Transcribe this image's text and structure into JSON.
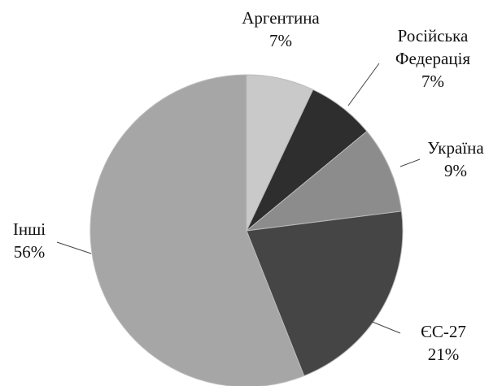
{
  "chart_data": {
    "type": "pie",
    "categories": [
      "Аргентина",
      "Російська Федерація",
      "Україна",
      "ЄС-27",
      "Інші"
    ],
    "values": [
      7,
      7,
      9,
      21,
      56
    ],
    "value_labels": [
      "7%",
      "7%",
      "9%",
      "21%",
      "56%"
    ],
    "colors": [
      "#c9c9c9",
      "#2e2e2e",
      "#8c8c8c",
      "#454545",
      "#a6a6a6"
    ]
  }
}
